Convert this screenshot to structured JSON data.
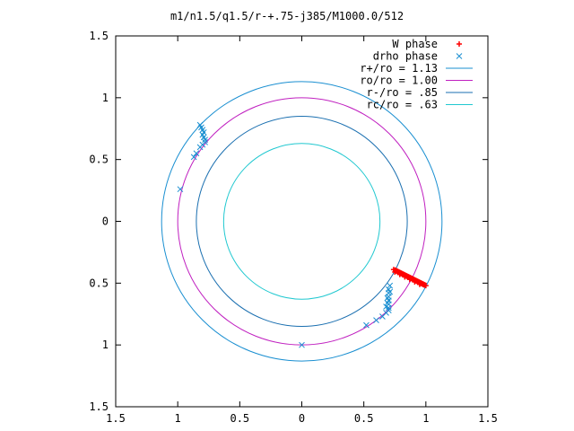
{
  "chart_data": {
    "type": "scatter",
    "title": "m1/n1.5/q1.5/r-+.75-j385/M1000.0/512",
    "xlabel": "",
    "ylabel": "",
    "xlim": [
      -1.5,
      1.5
    ],
    "ylim": [
      -1.5,
      1.5
    ],
    "grid": false,
    "legend_position": "top-right",
    "xticks": [
      -1.5,
      -1,
      -0.5,
      0,
      0.5,
      1,
      1.5
    ],
    "yticks": [
      -1.5,
      -1,
      -0.5,
      0,
      0.5,
      1,
      1.5
    ],
    "tick_labels": [
      "1.5",
      "1",
      "0.5",
      "0",
      "0.5",
      "1",
      "1.5"
    ],
    "series": [
      {
        "name": "W phase",
        "marker": "plus",
        "color": "#ff0000",
        "points": [
          [
            0.74,
            -0.39
          ],
          [
            0.76,
            -0.4
          ],
          [
            0.78,
            -0.41
          ],
          [
            0.8,
            -0.42
          ],
          [
            0.82,
            -0.43
          ],
          [
            0.84,
            -0.44
          ],
          [
            0.86,
            -0.45
          ],
          [
            0.88,
            -0.46
          ],
          [
            0.9,
            -0.47
          ],
          [
            0.92,
            -0.48
          ],
          [
            0.94,
            -0.49
          ],
          [
            0.96,
            -0.5
          ],
          [
            0.98,
            -0.51
          ],
          [
            1.0,
            -0.52
          ],
          [
            0.75,
            -0.41
          ],
          [
            0.79,
            -0.43
          ],
          [
            0.83,
            -0.45
          ],
          [
            0.87,
            -0.47
          ],
          [
            0.91,
            -0.49
          ],
          [
            0.95,
            -0.51
          ]
        ]
      },
      {
        "name": "drho phase",
        "marker": "cross",
        "color": "#1a8fd1",
        "points": [
          [
            -0.82,
            0.78
          ],
          [
            -0.81,
            0.76
          ],
          [
            -0.8,
            0.74
          ],
          [
            -0.79,
            0.72
          ],
          [
            -0.8,
            0.7
          ],
          [
            -0.79,
            0.68
          ],
          [
            -0.78,
            0.66
          ],
          [
            -0.78,
            0.64
          ],
          [
            -0.8,
            0.62
          ],
          [
            -0.82,
            0.6
          ],
          [
            -0.85,
            0.55
          ],
          [
            -0.87,
            0.52
          ],
          [
            -0.98,
            0.26
          ],
          [
            0.0,
            -1.0
          ],
          [
            0.52,
            -0.84
          ],
          [
            0.6,
            -0.8
          ],
          [
            0.65,
            -0.77
          ],
          [
            0.68,
            -0.74
          ],
          [
            0.7,
            -0.7
          ],
          [
            0.7,
            -0.67
          ],
          [
            0.7,
            -0.64
          ],
          [
            0.7,
            -0.61
          ],
          [
            0.7,
            -0.58
          ],
          [
            0.7,
            -0.55
          ],
          [
            0.71,
            -0.52
          ],
          [
            0.69,
            -0.62
          ],
          [
            0.69,
            -0.66
          ],
          [
            0.68,
            -0.69
          ],
          [
            0.71,
            -0.57
          ],
          [
            0.7,
            -0.72
          ]
        ]
      },
      {
        "name": "r+/ro = 1.13",
        "type": "circle",
        "radius": 1.13,
        "color": "#1a8fd1"
      },
      {
        "name": "ro/ro = 1.00",
        "type": "circle",
        "radius": 1.0,
        "color": "#c020c0"
      },
      {
        "name": "r-/ro = .85",
        "type": "circle",
        "radius": 0.85,
        "color": "#1a6fb0"
      },
      {
        "name": "rc/ro = .63",
        "type": "circle",
        "radius": 0.63,
        "color": "#20c8d0"
      }
    ]
  }
}
